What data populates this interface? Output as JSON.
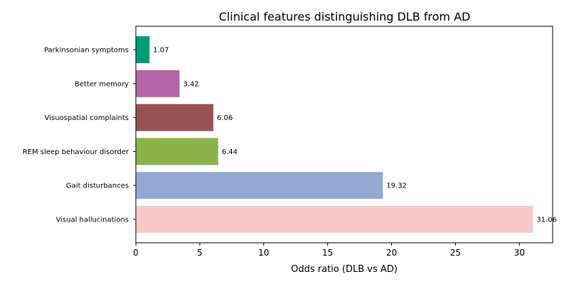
{
  "chart_data": {
    "type": "bar",
    "orientation": "horizontal",
    "title": "Clinical features distinguishing DLB from AD",
    "xlabel": "Odds ratio (DLB vs AD)",
    "ylabel": "",
    "xlim": [
      0,
      32.6
    ],
    "xticks": [
      0,
      5,
      10,
      15,
      20,
      25,
      30
    ],
    "categories": [
      "Visual hallucinations",
      "Gait disturbances",
      "REM sleep behaviour disorder",
      "Visuospatial complaints",
      "Better memory",
      "Parkinsonian symptoms"
    ],
    "values": [
      31.06,
      19.32,
      6.44,
      6.06,
      3.42,
      1.07
    ],
    "value_labels": [
      "31.06",
      "19.32",
      "6.44",
      "6.06",
      "3.42",
      "1.07"
    ],
    "colors": [
      "#f7caca",
      "#93a9d4",
      "#8cb34a",
      "#955251",
      "#b565a7",
      "#009b77"
    ],
    "grid": false
  }
}
